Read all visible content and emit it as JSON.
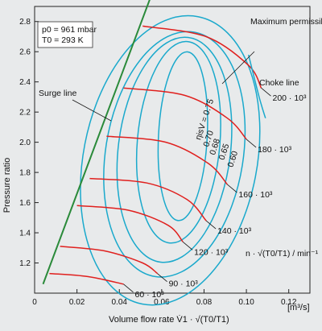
{
  "chart_data": {
    "type": "line",
    "title": "",
    "xlabel": "Volume flow rate V̇1 · √(T0/T1)",
    "xlabel_unit": "[m³/s]",
    "ylabel": "Pressure ratio",
    "xlim": [
      0,
      0.13
    ],
    "ylim": [
      1.0,
      2.9
    ],
    "xticks": [
      0,
      0.02,
      0.04,
      0.06,
      0.08,
      0.1,
      0.12
    ],
    "xtick_labels": [
      "0",
      "0.02",
      "0.04",
      "0.06",
      "0.08",
      "0.10",
      "0.12"
    ],
    "yticks": [
      1.2,
      1.4,
      1.6,
      1.8,
      2.0,
      2.2,
      2.4,
      2.6,
      2.8
    ],
    "ytick_labels": [
      "1.2",
      "1.4",
      "1.6",
      "1.8",
      "2.0",
      "2.2",
      "2.4",
      "2.6",
      "2.8"
    ],
    "grid": false,
    "conditions": [
      "p0 = 961 mbar",
      "T0 = 293 K"
    ],
    "speed_parameter_label": "n · √(T0/T1) / min⁻¹",
    "surge_line": {
      "label": "Surge line",
      "color": "#2a8a3a",
      "points": [
        [
          0.004,
          1.06
        ],
        [
          0.055,
          2.97
        ]
      ]
    },
    "speed_lines": {
      "color": "#e0201e",
      "series": [
        {
          "label": "60 · 10³",
          "points": [
            [
              0.007,
              1.13
            ],
            [
              0.025,
              1.11
            ],
            [
              0.042,
              1.06
            ]
          ]
        },
        {
          "label": "90 · 10³",
          "points": [
            [
              0.012,
              1.31
            ],
            [
              0.033,
              1.28
            ],
            [
              0.051,
              1.2
            ],
            [
              0.058,
              1.13
            ]
          ]
        },
        {
          "label": "120 · 10³",
          "points": [
            [
              0.02,
              1.58
            ],
            [
              0.044,
              1.55
            ],
            [
              0.063,
              1.45
            ],
            [
              0.07,
              1.34
            ]
          ]
        },
        {
          "label": "140 · 10³",
          "points": [
            [
              0.026,
              1.76
            ],
            [
              0.053,
              1.73
            ],
            [
              0.072,
              1.62
            ],
            [
              0.081,
              1.48
            ]
          ]
        },
        {
          "label": "160 · 10³",
          "points": [
            [
              0.034,
              2.04
            ],
            [
              0.062,
              2.0
            ],
            [
              0.082,
              1.86
            ],
            [
              0.091,
              1.72
            ]
          ]
        },
        {
          "label": "180 · 10³",
          "points": [
            [
              0.042,
              2.36
            ],
            [
              0.071,
              2.31
            ],
            [
              0.091,
              2.16
            ],
            [
              0.1,
              2.02
            ]
          ]
        },
        {
          "label": "200 · 10³",
          "points": [
            [
              0.051,
              2.77
            ],
            [
              0.081,
              2.7
            ],
            [
              0.101,
              2.51
            ],
            [
              0.107,
              2.36
            ]
          ]
        }
      ]
    },
    "efficiency_contours": {
      "color": "#1aa9cc",
      "series": [
        {
          "label": "ηisV = 0.75",
          "center": [
            0.07,
            2.04
          ],
          "rx": 0.0115,
          "ry": 0.56,
          "tilt_deg": 3
        },
        {
          "label": "0.70",
          "center": [
            0.068,
            2.0
          ],
          "rx": 0.0195,
          "ry": 0.67,
          "tilt_deg": 5
        },
        {
          "label": "0.68",
          "center": [
            0.066,
            1.95
          ],
          "rx": 0.0265,
          "ry": 0.75,
          "tilt_deg": 7
        },
        {
          "label": "0.65",
          "center": [
            0.066,
            1.92
          ],
          "rx": 0.0325,
          "ry": 0.82,
          "tilt_deg": 9
        },
        {
          "label": "0.60",
          "center": [
            0.064,
            1.88
          ],
          "rx": 0.041,
          "ry": 0.97,
          "tilt_deg": 11
        }
      ]
    },
    "choke_line": {
      "label": "Choke line",
      "color": "#1aa9cc",
      "points": [
        [
          0.101,
          2.58
        ],
        [
          0.106,
          2.3
        ],
        [
          0.109,
          2.16
        ]
      ]
    },
    "annotations": [
      {
        "text": "Maximum permissible speed",
        "target": "200 · 10³"
      }
    ]
  }
}
